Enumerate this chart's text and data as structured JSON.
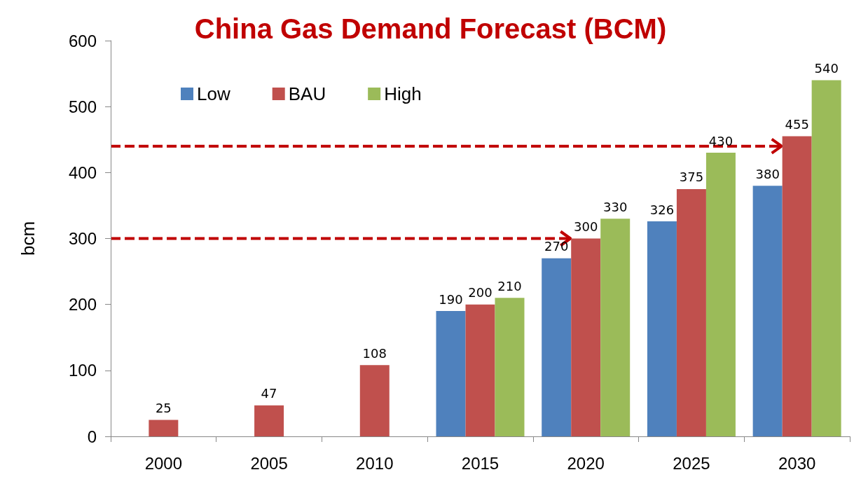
{
  "chart_data": {
    "type": "bar",
    "title": "China Gas Demand Forecast (BCM)",
    "ylabel": "bcm",
    "categories": [
      "2000",
      "2005",
      "2010",
      "2015",
      "2020",
      "2025",
      "2030"
    ],
    "series": [
      {
        "name": "Low",
        "color": "#4f81bd",
        "values": [
          null,
          null,
          null,
          190,
          270,
          326,
          380
        ]
      },
      {
        "name": "BAU",
        "color": "#c0504d",
        "values": [
          25,
          47,
          108,
          200,
          300,
          375,
          455
        ]
      },
      {
        "name": "High",
        "color": "#9bbb59",
        "values": [
          null,
          null,
          null,
          210,
          330,
          430,
          540
        ]
      }
    ],
    "ylim": [
      0,
      600
    ],
    "yticks": [
      0,
      100,
      200,
      300,
      400,
      500,
      600
    ],
    "grid": false,
    "legend": "top left",
    "data_labels": true,
    "ref_lines": [
      {
        "axis": "y",
        "value": 300,
        "label": null,
        "color": "#c00000",
        "line_style": "dashed"
      },
      {
        "axis": "y",
        "value": 440,
        "label": null,
        "color": "#c00000",
        "line_style": "dashed"
      }
    ]
  }
}
